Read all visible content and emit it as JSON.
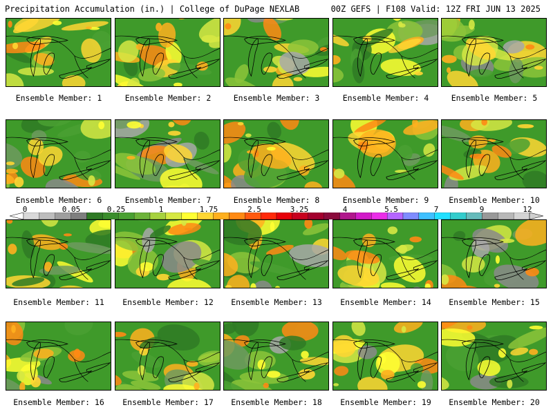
{
  "header": {
    "left": "Precipitation Accumulation (in.) | College of DuPage NEXLAB",
    "right": "00Z GEFS | F108 Valid: 12Z FRI JUN 13 2025"
  },
  "panels": [
    {
      "label": "Ensemble Member: 1"
    },
    {
      "label": "Ensemble Member: 2"
    },
    {
      "label": "Ensemble Member: 3"
    },
    {
      "label": "Ensemble Member: 4"
    },
    {
      "label": "Ensemble Member: 5"
    },
    {
      "label": "Ensemble Member: 6"
    },
    {
      "label": "Ensemble Member: 7"
    },
    {
      "label": "Ensemble Member: 8"
    },
    {
      "label": "Ensemble Member: 9"
    },
    {
      "label": "Ensemble Member: 10"
    },
    {
      "label": "Ensemble Member: 11"
    },
    {
      "label": "Ensemble Member: 12"
    },
    {
      "label": "Ensemble Member: 13"
    },
    {
      "label": "Ensemble Member: 14"
    },
    {
      "label": "Ensemble Member: 15"
    },
    {
      "label": "Ensemble Member: 16"
    },
    {
      "label": "Ensemble Member: 17"
    },
    {
      "label": "Ensemble Member: 18"
    },
    {
      "label": "Ensemble Member: 19"
    },
    {
      "label": "Ensemble Member: 20"
    }
  ],
  "colorbar": {
    "tick_labels": [
      "0",
      "0.05",
      "0.25",
      "1",
      "1.75",
      "2.5",
      "3.25",
      "4",
      "5.5",
      "7",
      "9",
      "12"
    ],
    "colors": [
      "#d9d9d9",
      "#bdbdbd",
      "#9e9e9e",
      "#7f7f7f",
      "#2f7a25",
      "#3a8d2c",
      "#4aa032",
      "#6db33a",
      "#a7d23f",
      "#d6e844",
      "#ffff33",
      "#ffd633",
      "#ffb01f",
      "#ff8a14",
      "#ff5a0f",
      "#ff2a0a",
      "#e6000a",
      "#c8001e",
      "#a3002e",
      "#8a0a3c",
      "#b0168c",
      "#d11bc8",
      "#ea2ee8",
      "#b566ff",
      "#7f8cff",
      "#3fc0ff",
      "#22e0ff",
      "#33cccc",
      "#66bbbb",
      "#999999",
      "#b8b8b8",
      "#d4d4d4"
    ]
  }
}
